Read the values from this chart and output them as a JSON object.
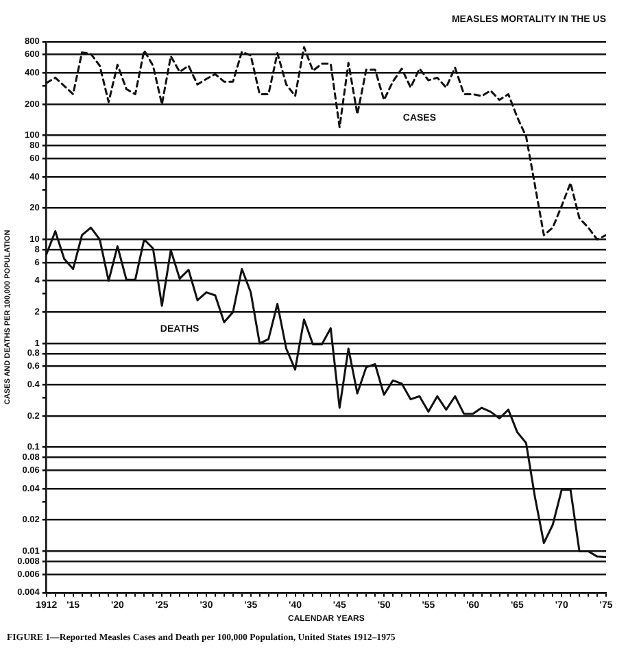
{
  "chart_data": {
    "type": "line",
    "title": "MEASLES MORTALITY IN THE US",
    "xlabel": "CALENDAR YEARS",
    "ylabel": "CASES AND DEATHS PER 100,000 POPULATION",
    "annotations": [
      "FIGURE 1—Reported Measles Cases and Death per 100,000 Population, United States 1912–1975"
    ],
    "x": [
      1912,
      1913,
      1914,
      1915,
      1916,
      1917,
      1918,
      1919,
      1920,
      1921,
      1922,
      1923,
      1924,
      1925,
      1926,
      1927,
      1928,
      1929,
      1930,
      1931,
      1932,
      1933,
      1934,
      1935,
      1936,
      1937,
      1938,
      1939,
      1940,
      1941,
      1942,
      1943,
      1944,
      1945,
      1946,
      1947,
      1948,
      1949,
      1950,
      1951,
      1952,
      1953,
      1954,
      1955,
      1956,
      1957,
      1958,
      1959,
      1960,
      1961,
      1962,
      1963,
      1964,
      1965,
      1966,
      1967,
      1968,
      1969,
      1970,
      1971,
      1972,
      1973,
      1974,
      1975
    ],
    "series": [
      {
        "name": "CASES",
        "color": "#111111",
        "line_style": "dashed",
        "values": [
          320,
          360,
          300,
          250,
          630,
          610,
          470,
          210,
          480,
          280,
          250,
          660,
          470,
          200,
          580,
          410,
          470,
          310,
          350,
          390,
          330,
          330,
          640,
          590,
          250,
          250,
          620,
          310,
          240,
          710,
          420,
          490,
          490,
          120,
          500,
          160,
          430,
          430,
          220,
          330,
          440,
          290,
          440,
          340,
          360,
          290,
          450,
          250,
          250,
          240,
          270,
          220,
          250,
          150,
          98,
          33,
          11,
          13,
          21,
          35,
          16,
          13,
          10,
          11
        ]
      },
      {
        "name": "DEATHS",
        "color": "#111111",
        "line_style": "solid",
        "values": [
          7.2,
          12,
          6.5,
          5.2,
          11,
          13,
          10,
          4.0,
          8.6,
          4.1,
          4.1,
          10,
          8.2,
          2.3,
          7.9,
          4.2,
          5.1,
          2.6,
          3.1,
          2.9,
          1.6,
          2.0,
          5.2,
          3.1,
          1.0,
          1.1,
          2.4,
          0.89,
          0.56,
          1.7,
          0.98,
          0.98,
          1.4,
          0.24,
          0.89,
          0.33,
          0.59,
          0.63,
          0.32,
          0.44,
          0.41,
          0.29,
          0.31,
          0.22,
          0.31,
          0.23,
          0.31,
          0.21,
          0.21,
          0.24,
          0.22,
          0.19,
          0.23,
          0.14,
          0.11,
          0.033,
          0.012,
          0.018,
          0.039,
          0.039,
          0.01,
          0.01,
          0.0089,
          0.0088
        ]
      }
    ],
    "xlim": [
      1912,
      1975
    ],
    "xticks": [
      1912,
      {
        "value": 1913,
        "label": null
      },
      {
        "value": 1914,
        "label": null
      },
      {
        "value": 1915,
        "label": "'15"
      },
      {
        "value": 1916,
        "label": null
      },
      {
        "value": 1917,
        "label": null
      },
      {
        "value": 1918,
        "label": null
      },
      {
        "value": 1919,
        "label": null
      },
      {
        "value": 1920,
        "label": "'20"
      },
      {
        "value": 1921,
        "label": null
      },
      {
        "value": 1922,
        "label": null
      },
      {
        "value": 1923,
        "label": null
      },
      {
        "value": 1924,
        "label": null
      },
      {
        "value": 1925,
        "label": "'25"
      },
      {
        "value": 1926,
        "label": null
      },
      {
        "value": 1927,
        "label": null
      },
      {
        "value": 1928,
        "label": null
      },
      {
        "value": 1929,
        "label": null
      },
      {
        "value": 1930,
        "label": "'30"
      },
      {
        "value": 1931,
        "label": null
      },
      {
        "value": 1932,
        "label": null
      },
      {
        "value": 1933,
        "label": null
      },
      {
        "value": 1934,
        "label": null
      },
      {
        "value": 1935,
        "label": "'35"
      },
      {
        "value": 1936,
        "label": null
      },
      {
        "value": 1937,
        "label": null
      },
      {
        "value": 1938,
        "label": null
      },
      {
        "value": 1939,
        "label": null
      },
      {
        "value": 1940,
        "label": "'40"
      },
      {
        "value": 1941,
        "label": null
      },
      {
        "value": 1942,
        "label": null
      },
      {
        "value": 1943,
        "label": null
      },
      {
        "value": 1944,
        "label": null
      },
      {
        "value": 1945,
        "label": "'45"
      },
      {
        "value": 1946,
        "label": null
      },
      {
        "value": 1947,
        "label": null
      },
      {
        "value": 1948,
        "label": null
      },
      {
        "value": 1949,
        "label": null
      },
      {
        "value": 1950,
        "label": "'50"
      },
      {
        "value": 1951,
        "label": null
      },
      {
        "value": 1952,
        "label": null
      },
      {
        "value": 1953,
        "label": null
      },
      {
        "value": 1954,
        "label": null
      },
      {
        "value": 1955,
        "label": "'55"
      },
      {
        "value": 1956,
        "label": null
      },
      {
        "value": 1957,
        "label": null
      },
      {
        "value": 1958,
        "label": null
      },
      {
        "value": 1959,
        "label": null
      },
      {
        "value": 1960,
        "label": "'60"
      },
      {
        "value": 1961,
        "label": null
      },
      {
        "value": 1962,
        "label": null
      },
      {
        "value": 1963,
        "label": null
      },
      {
        "value": 1964,
        "label": null
      },
      {
        "value": 1965,
        "label": "'65"
      },
      {
        "value": 1966,
        "label": null
      },
      {
        "value": 1967,
        "label": null
      },
      {
        "value": 1968,
        "label": null
      },
      {
        "value": 1969,
        "label": null
      },
      {
        "value": 1970,
        "label": "'70"
      },
      {
        "value": 1971,
        "label": null
      },
      {
        "value": 1972,
        "label": null
      },
      {
        "value": 1973,
        "label": null
      },
      {
        "value": 1974,
        "label": null
      },
      {
        "value": 1975,
        "label": "'75"
      }
    ],
    "ylim": [
      0.004,
      800
    ],
    "yticks": [
      0.004,
      0.006,
      0.008,
      0.01,
      0.02,
      {
        "value": 0.03,
        "label": null
      },
      0.04,
      0.06,
      0.08,
      0.1,
      0.2,
      {
        "value": 0.3,
        "label": null
      },
      0.4,
      0.6,
      0.8,
      1,
      2,
      {
        "value": 3,
        "label": null
      },
      4,
      6,
      8,
      10,
      20,
      {
        "value": 30,
        "label": null
      },
      40,
      60,
      80,
      100,
      200,
      {
        "value": 300,
        "label": null
      },
      400,
      600,
      800
    ],
    "log": true,
    "grid": "y",
    "legend": false,
    "marker": "none"
  }
}
